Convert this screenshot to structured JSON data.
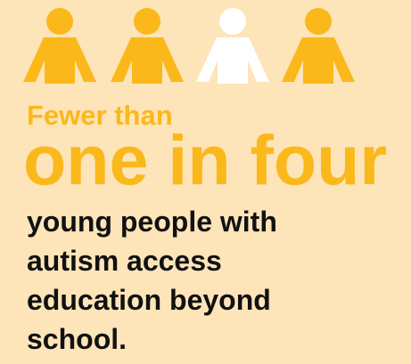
{
  "colors": {
    "background": "#fde4b9",
    "accent": "#fbb81b",
    "highlight": "#ffffff",
    "text": "#111111"
  },
  "figures": [
    {
      "icon": "person-icon",
      "color": "#fbb81b"
    },
    {
      "icon": "person-icon",
      "color": "#fbb81b"
    },
    {
      "icon": "person-icon",
      "color": "#ffffff"
    },
    {
      "icon": "person-icon",
      "color": "#fbb81b"
    }
  ],
  "stat": {
    "lead": "Fewer than",
    "headline": "one in four"
  },
  "body": {
    "lines": [
      "young people with",
      "autism access",
      "education beyond",
      "school."
    ]
  }
}
